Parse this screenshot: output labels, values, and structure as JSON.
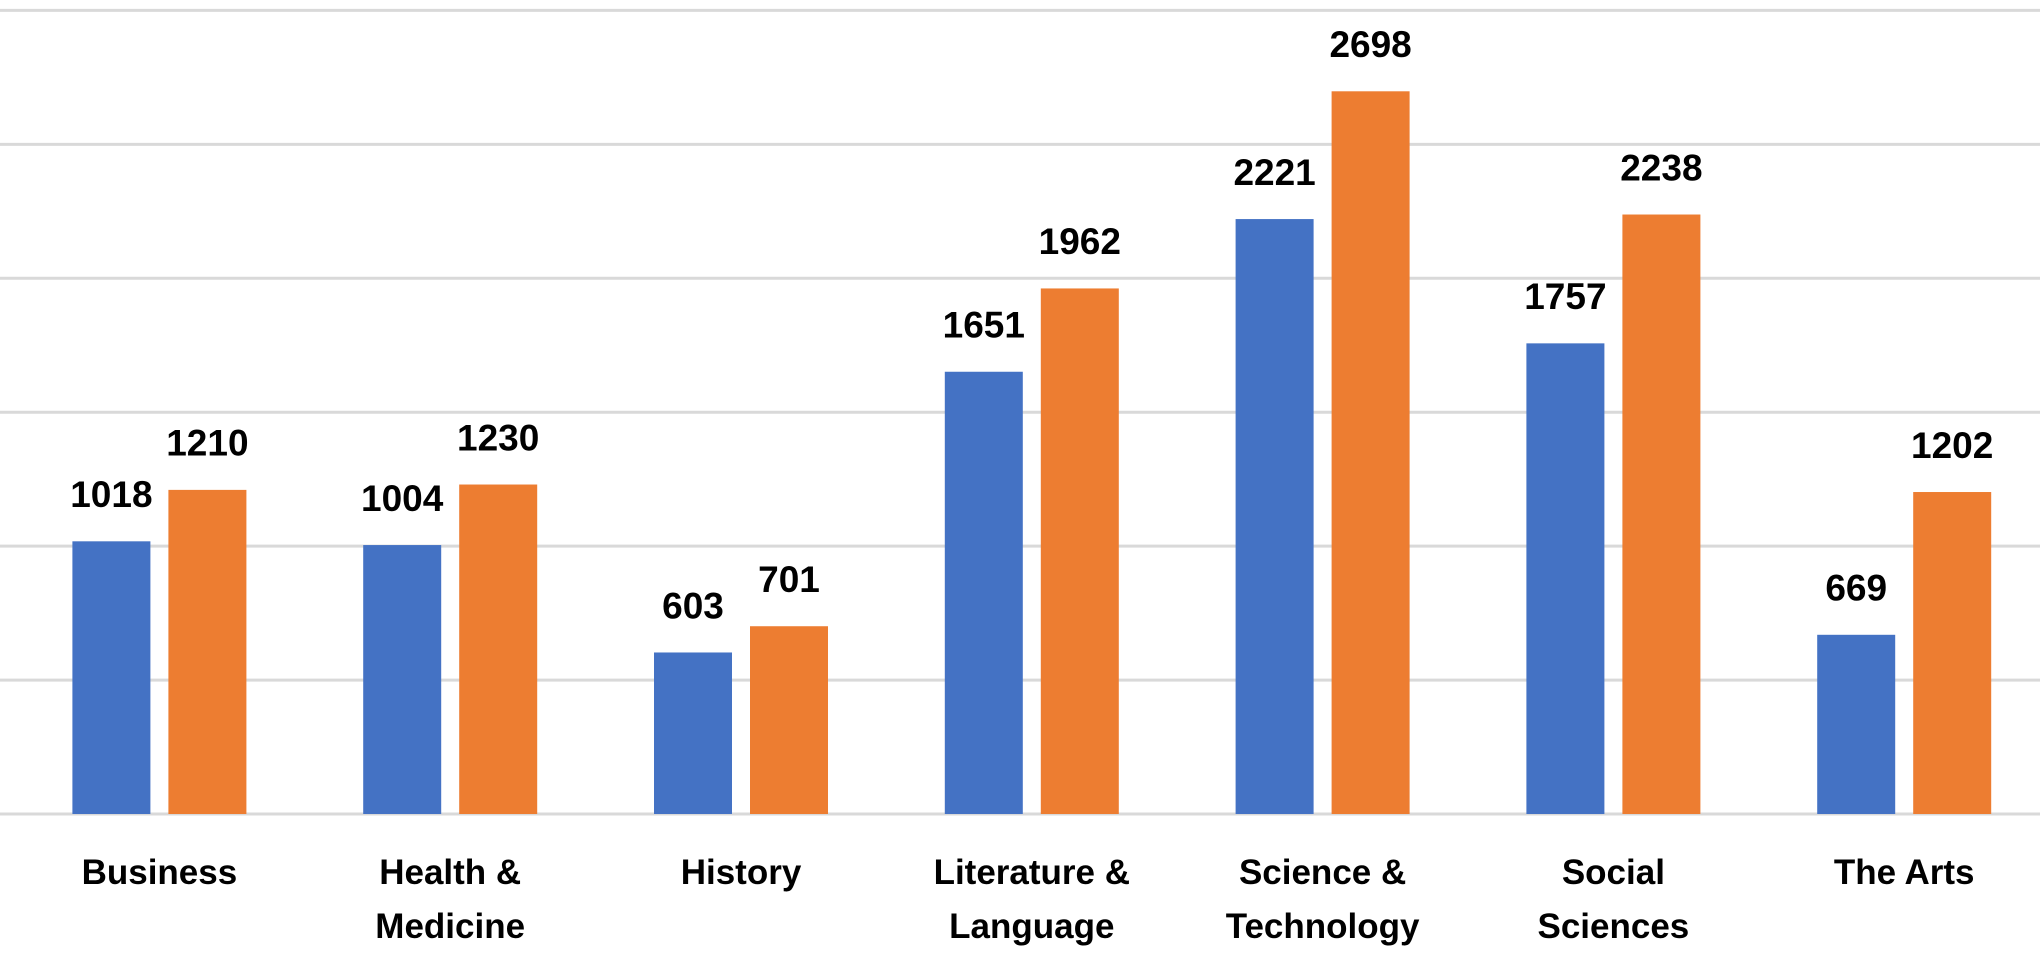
{
  "chart_data": {
    "type": "bar",
    "categories": [
      "Business",
      "Health & Medicine",
      "History",
      "Literature & Language",
      "Science & Technology",
      "Social Sciences",
      "The Arts"
    ],
    "series": [
      {
        "color": "#4472c4",
        "values": [
          1018,
          1004,
          603,
          1651,
          2221,
          1757,
          669
        ]
      },
      {
        "color": "#ed7d31",
        "values": [
          1210,
          1230,
          701,
          1962,
          2698,
          2238,
          1202
        ]
      }
    ],
    "ylim": [
      0,
      3000
    ],
    "yticks": [
      0,
      500,
      1000,
      1500,
      2000,
      2500,
      3000
    ],
    "grid": true
  }
}
